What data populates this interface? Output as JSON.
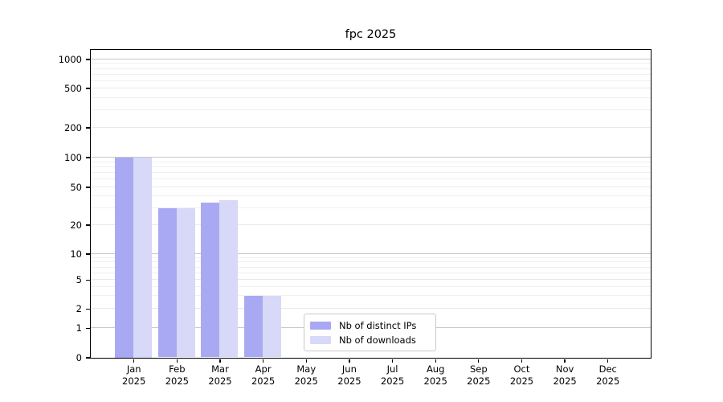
{
  "title": "fpc 2025",
  "legend": {
    "items": [
      {
        "label": "Nb of distinct IPs",
        "color": "#a9a9f3"
      },
      {
        "label": "Nb of downloads",
        "color": "#d8d8f8"
      }
    ]
  },
  "chart_data": {
    "type": "bar",
    "title": "fpc 2025",
    "categories": [
      "Jan 2025",
      "Feb 2025",
      "Mar 2025",
      "Apr 2025",
      "May 2025",
      "Jun 2025",
      "Jul 2025",
      "Aug 2025",
      "Sep 2025",
      "Oct 2025",
      "Nov 2025",
      "Dec 2025"
    ],
    "months": [
      "Jan",
      "Feb",
      "Mar",
      "Apr",
      "May",
      "Jun",
      "Jul",
      "Aug",
      "Sep",
      "Oct",
      "Nov",
      "Dec"
    ],
    "year": "2025",
    "series": [
      {
        "name": "Nb of distinct IPs",
        "color": "#a9a9f3",
        "values": [
          100,
          30,
          34,
          3,
          0,
          0,
          0,
          0,
          0,
          0,
          0,
          0
        ]
      },
      {
        "name": "Nb of downloads",
        "color": "#d8d8f8",
        "values": [
          100,
          30,
          36,
          3,
          0,
          0,
          0,
          0,
          0,
          0,
          0,
          0
        ]
      }
    ],
    "y_ticks": [
      0,
      1,
      2,
      5,
      10,
      20,
      50,
      100,
      200,
      500,
      1000
    ],
    "yscale": "symlog",
    "ylim": [
      0,
      1288
    ],
    "grid": true,
    "legend_position": "lower center"
  }
}
